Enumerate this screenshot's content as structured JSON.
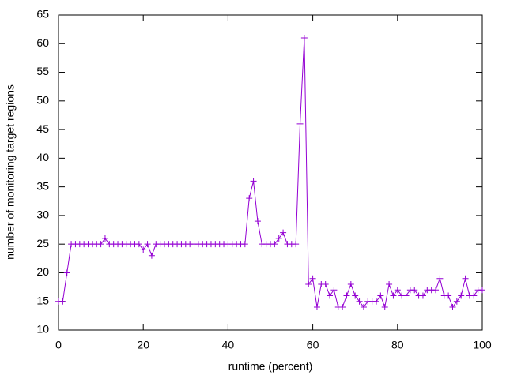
{
  "chart_data": {
    "type": "line",
    "xlabel": "runtime (percent)",
    "ylabel": "number of monitoring target regions",
    "x": [
      0,
      1,
      2,
      3,
      4,
      5,
      6,
      7,
      8,
      9,
      10,
      11,
      12,
      13,
      14,
      15,
      16,
      17,
      18,
      19,
      20,
      21,
      22,
      23,
      24,
      25,
      26,
      27,
      28,
      29,
      30,
      31,
      32,
      33,
      34,
      35,
      36,
      37,
      38,
      39,
      40,
      41,
      42,
      43,
      44,
      45,
      46,
      47,
      48,
      49,
      50,
      51,
      52,
      53,
      54,
      55,
      56,
      57,
      58,
      59,
      60,
      61,
      62,
      63,
      64,
      65,
      66,
      67,
      68,
      69,
      70,
      71,
      72,
      73,
      74,
      75,
      76,
      77,
      78,
      79,
      80,
      81,
      82,
      83,
      84,
      85,
      86,
      87,
      88,
      89,
      90,
      91,
      92,
      93,
      94,
      95,
      96,
      97,
      98,
      99,
      100
    ],
    "values": [
      15,
      15,
      20,
      25,
      25,
      25,
      25,
      25,
      25,
      25,
      25,
      26,
      25,
      25,
      25,
      25,
      25,
      25,
      25,
      25,
      24,
      25,
      23,
      25,
      25,
      25,
      25,
      25,
      25,
      25,
      25,
      25,
      25,
      25,
      25,
      25,
      25,
      25,
      25,
      25,
      25,
      25,
      25,
      25,
      25,
      33,
      36,
      29,
      25,
      25,
      25,
      25,
      26,
      27,
      25,
      25,
      25,
      46,
      61,
      18,
      19,
      14,
      18,
      18,
      16,
      17,
      14,
      14,
      16,
      18,
      16,
      15,
      14,
      15,
      15,
      15,
      16,
      14,
      18,
      16,
      17,
      16,
      16,
      17,
      17,
      16,
      16,
      17,
      17,
      17,
      19,
      16,
      16,
      14,
      15,
      16,
      19,
      16,
      16,
      17,
      17
    ],
    "color": "#9400d3",
    "xlim": [
      0,
      100
    ],
    "xticks": [
      0,
      20,
      40,
      60,
      80,
      100
    ],
    "ylim": [
      10,
      65
    ],
    "yticks": [
      10,
      15,
      20,
      25,
      30,
      35,
      40,
      45,
      50,
      55,
      60,
      65
    ]
  }
}
